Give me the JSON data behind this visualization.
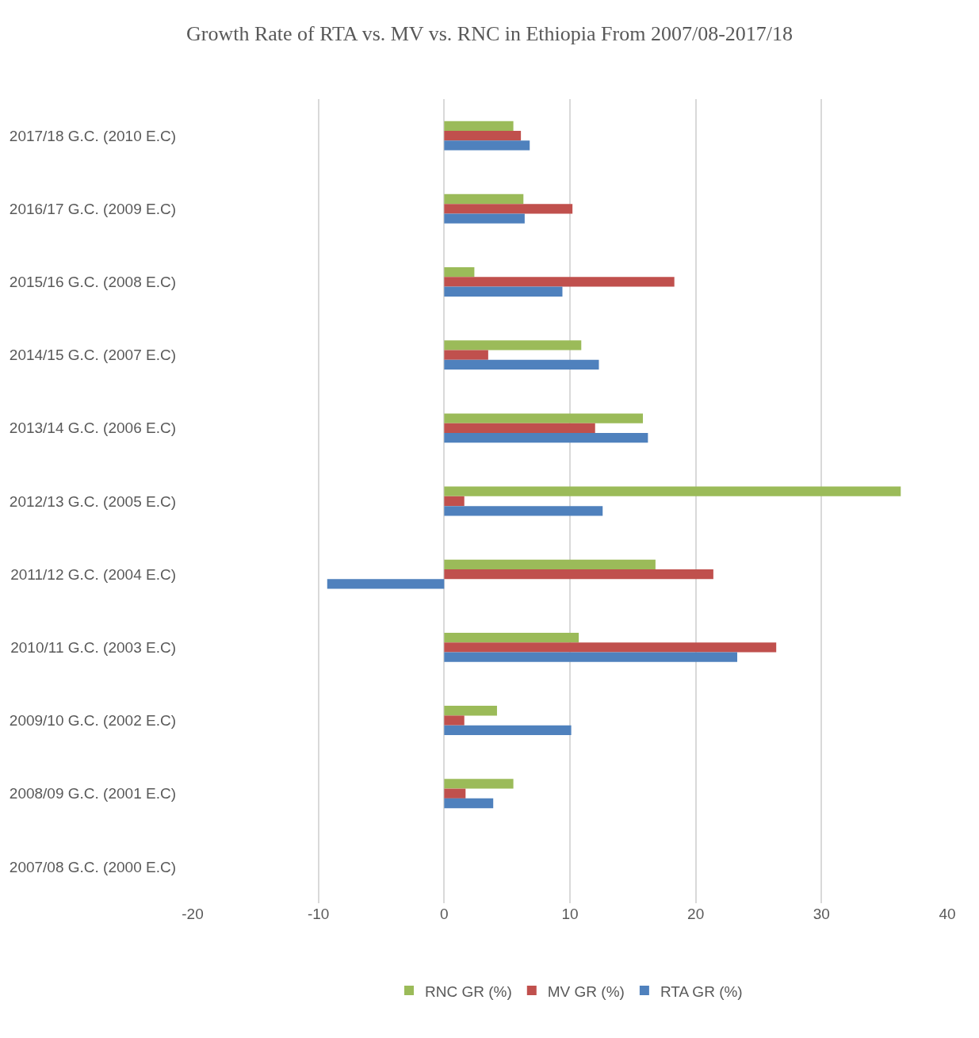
{
  "chart_data": {
    "type": "bar",
    "orientation": "horizontal",
    "title": "Growth Rate of RTA vs. MV vs. RNC in Ethiopia From 2007/08-2017/18",
    "categories": [
      "2017/18 G.C. (2010 E.C)",
      "2016/17 G.C. (2009 E.C)",
      "2015/16 G.C. (2008 E.C)",
      "2014/15 G.C. (2007 E.C)",
      "2013/14 G.C. (2006 E.C)",
      "2012/13 G.C. (2005 E.C)",
      "2011/12 G.C. (2004 E.C)",
      "2010/11 G.C. (2003 E.C)",
      "2009/10 G.C. (2002 E.C)",
      "2008/09 G.C. (2001 E.C)",
      "2007/08 G.C. (2000 E.C)"
    ],
    "series": [
      {
        "name": "RNC GR (%)",
        "color": "#9bbb59",
        "values": [
          5.5,
          6.3,
          2.4,
          10.9,
          15.8,
          36.3,
          16.8,
          10.7,
          4.2,
          5.5,
          null
        ]
      },
      {
        "name": "MV GR (%)",
        "color": "#c0504d",
        "values": [
          6.1,
          10.2,
          18.3,
          3.5,
          12.0,
          1.6,
          21.4,
          26.4,
          1.6,
          1.7,
          null
        ]
      },
      {
        "name": "RTA GR (%)",
        "color": "#4f81bd",
        "values": [
          6.8,
          6.4,
          9.4,
          12.3,
          16.2,
          12.6,
          -9.3,
          23.3,
          10.1,
          3.9,
          null
        ]
      }
    ],
    "xlim": [
      -20,
      40
    ],
    "xticks": [
      -20,
      -10,
      0,
      10,
      20,
      30,
      40
    ],
    "grid": "x",
    "legend": "bottom"
  }
}
